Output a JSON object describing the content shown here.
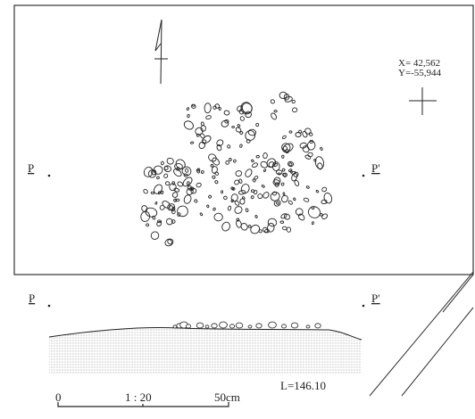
{
  "plan": {
    "left_point": "P",
    "right_point": "P'",
    "coordinates": {
      "x": "X=  42,562",
      "y": "Y=-55,944"
    }
  },
  "section": {
    "left_point": "P",
    "right_point": "P'",
    "level": "L=146.10"
  },
  "scale_bar": {
    "zero": "0",
    "ratio": "1 : 20",
    "length": "50cm"
  },
  "icons": {
    "north": "north-arrow-icon",
    "grid": "grid-cross-icon"
  }
}
